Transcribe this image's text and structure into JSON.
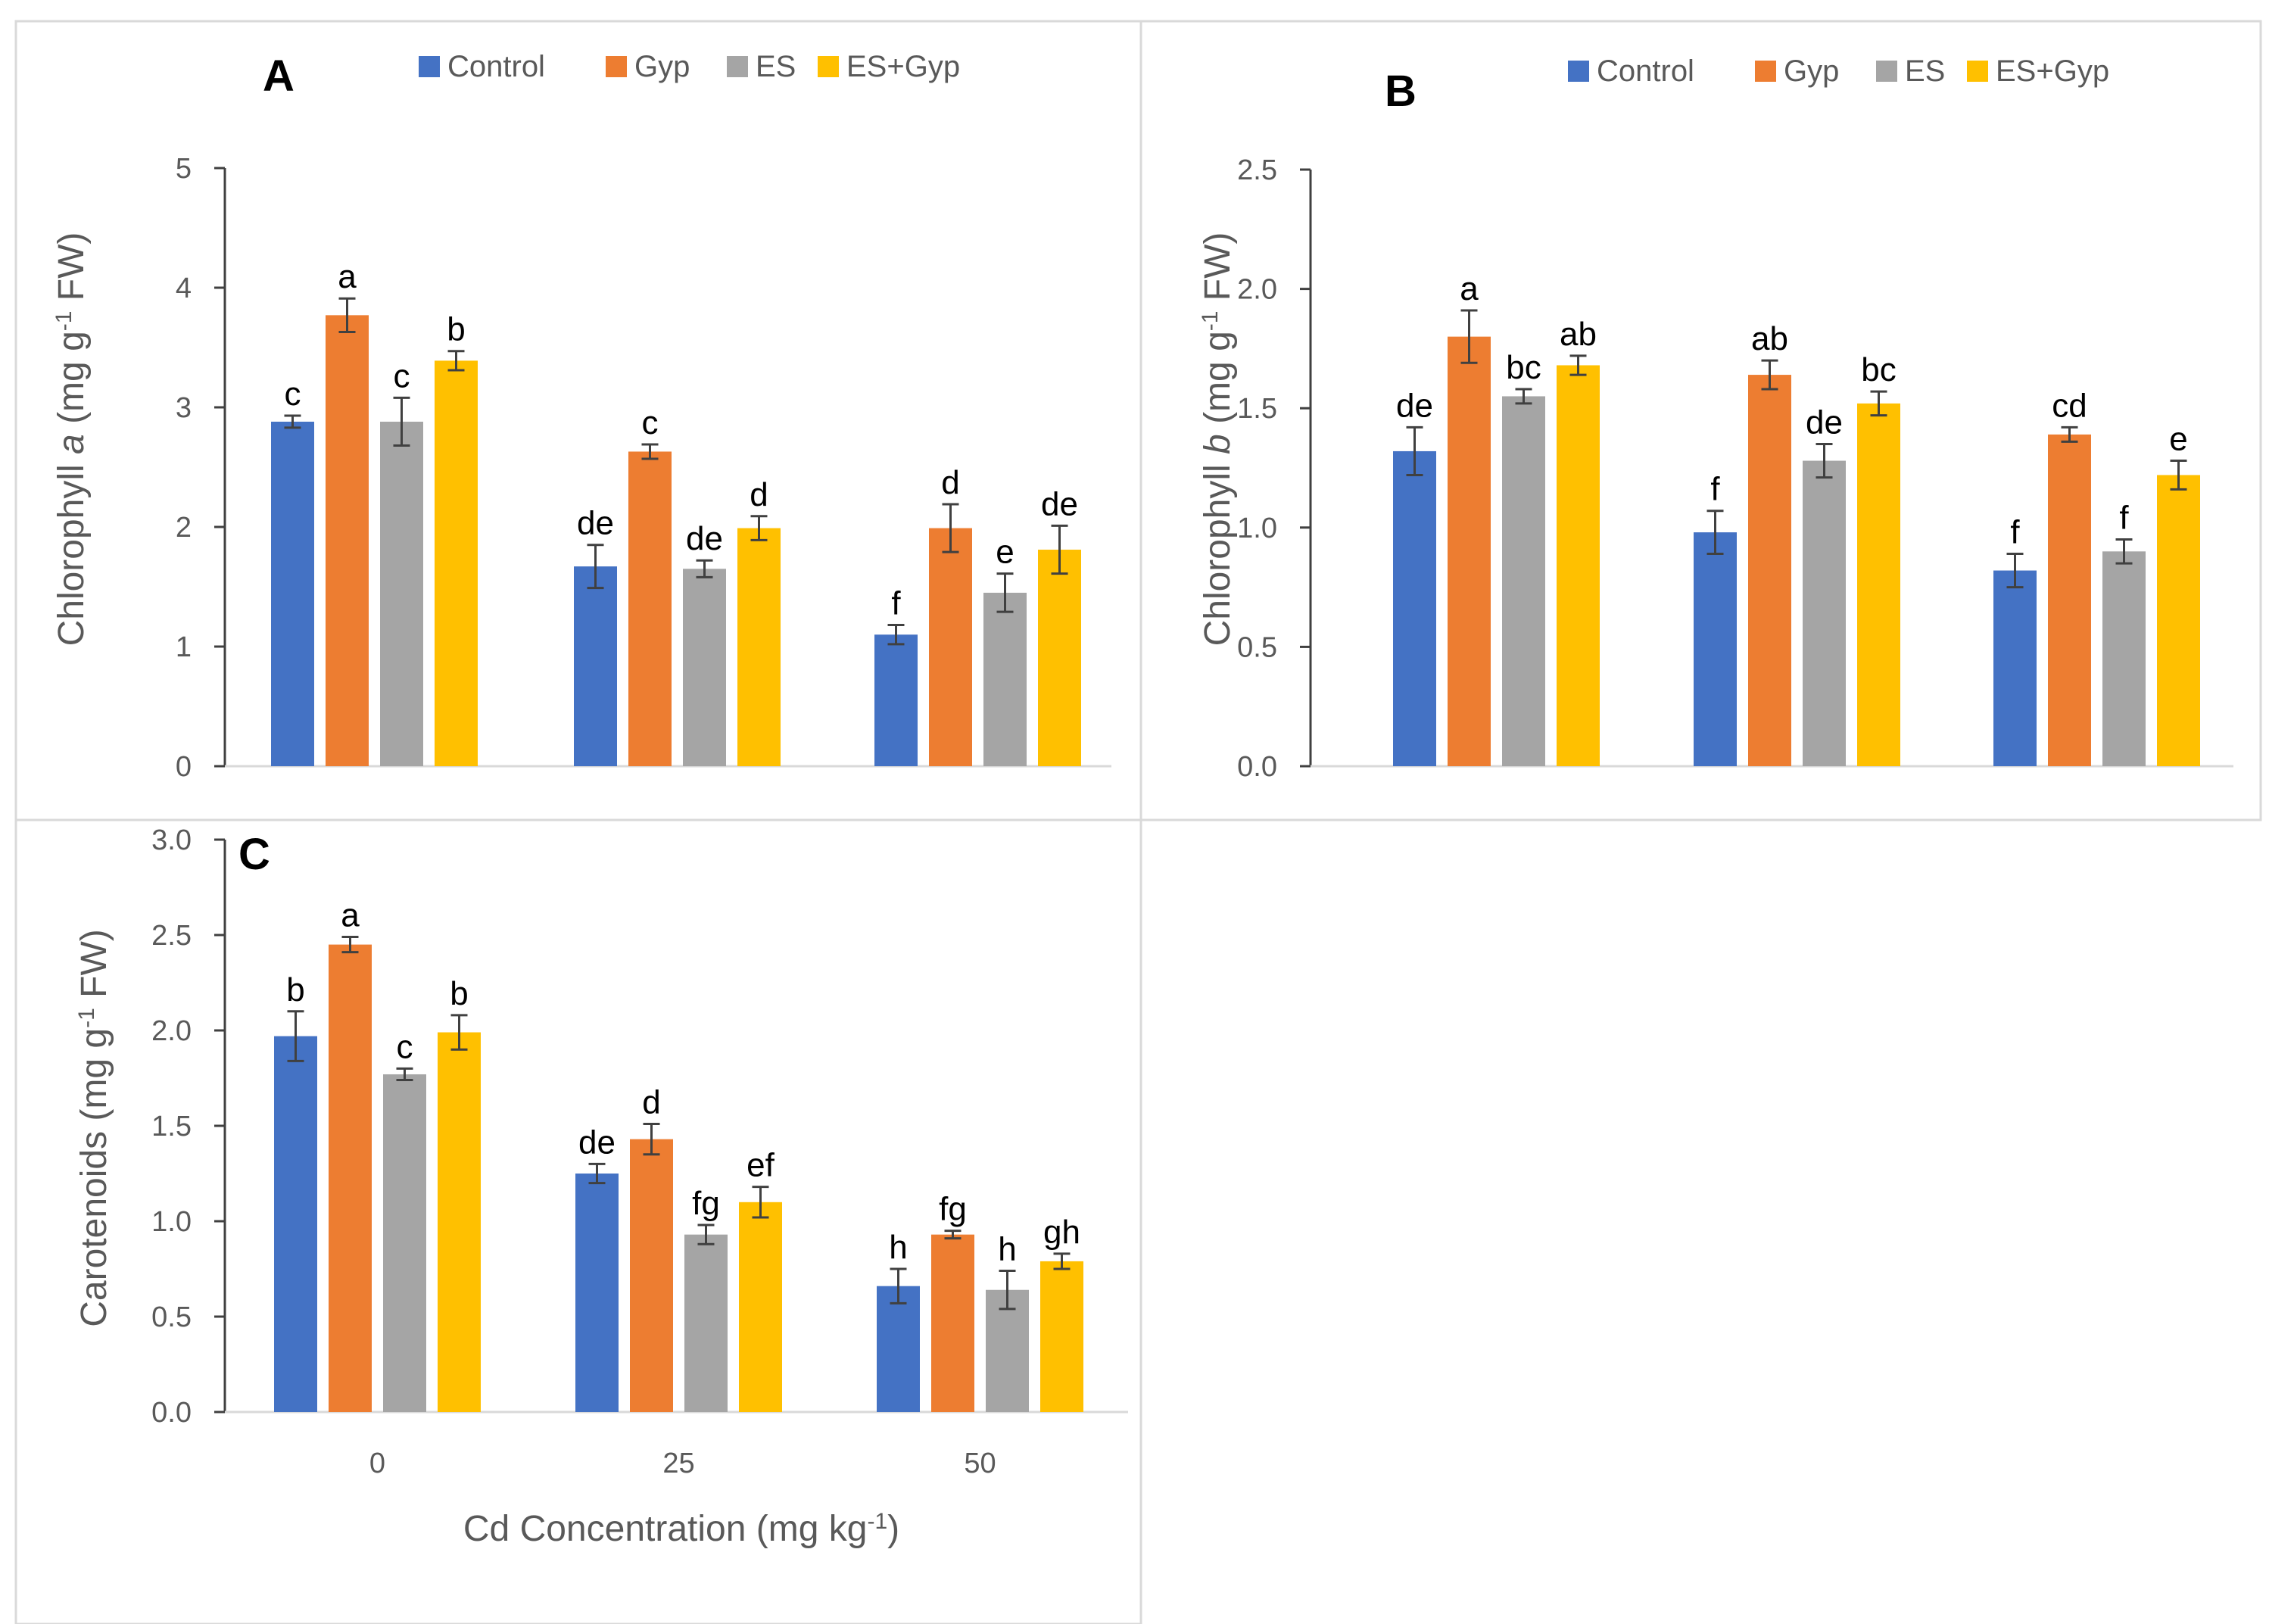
{
  "colors": {
    "Control": "#4472C4",
    "Gyp": "#ED7D31",
    "ES": "#A5A5A5",
    "ES+Gyp": "#FFC000"
  },
  "chart_data": [
    {
      "panel": "A",
      "type": "bar",
      "categories": [
        "0",
        "25",
        "50"
      ],
      "series": [
        {
          "name": "Control",
          "values": [
            2.88,
            1.67,
            1.1
          ],
          "errors": [
            0.05,
            0.18,
            0.08
          ],
          "letters": [
            "c",
            "de",
            "f"
          ]
        },
        {
          "name": "Gyp",
          "values": [
            3.77,
            2.63,
            1.99
          ],
          "errors": [
            0.14,
            0.06,
            0.2
          ],
          "letters": [
            "a",
            "c",
            "d"
          ]
        },
        {
          "name": "ES",
          "values": [
            2.88,
            1.65,
            1.45
          ],
          "errors": [
            0.2,
            0.07,
            0.16
          ],
          "letters": [
            "c",
            "de",
            "e"
          ]
        },
        {
          "name": "ES+Gyp",
          "values": [
            3.39,
            1.99,
            1.81
          ],
          "errors": [
            0.08,
            0.1,
            0.2
          ],
          "letters": [
            "b",
            "d",
            "de"
          ]
        }
      ],
      "ylabel": "Chlorophyll a (mg g-1 FW)",
      "ylim": [
        0,
        5
      ],
      "yticks": [
        "0",
        "1",
        "2",
        "3",
        "4",
        "5"
      ],
      "legend": "top"
    },
    {
      "panel": "B",
      "type": "bar",
      "categories": [
        "0",
        "25",
        "50"
      ],
      "series": [
        {
          "name": "Control",
          "values": [
            1.32,
            0.98,
            0.82
          ],
          "errors": [
            0.1,
            0.09,
            0.07
          ],
          "letters": [
            "de",
            "f",
            "f"
          ]
        },
        {
          "name": "Gyp",
          "values": [
            1.8,
            1.64,
            1.39
          ],
          "errors": [
            0.11,
            0.06,
            0.03
          ],
          "letters": [
            "a",
            "ab",
            "cd"
          ]
        },
        {
          "name": "ES",
          "values": [
            1.55,
            1.28,
            0.9
          ],
          "errors": [
            0.03,
            0.07,
            0.05
          ],
          "letters": [
            "bc",
            "de",
            "f"
          ]
        },
        {
          "name": "ES+Gyp",
          "values": [
            1.68,
            1.52,
            1.22
          ],
          "errors": [
            0.04,
            0.05,
            0.06
          ],
          "letters": [
            "ab",
            "bc",
            "e"
          ]
        }
      ],
      "ylabel": "Chlorophyll b (mg g-1 FW)",
      "ylim": [
        0,
        2.5
      ],
      "yticks": [
        "0.0",
        "0.5",
        "1.0",
        "1.5",
        "2.0",
        "2.5"
      ],
      "legend": "top"
    },
    {
      "panel": "C",
      "type": "bar",
      "categories": [
        "0",
        "25",
        "50"
      ],
      "series": [
        {
          "name": "Control",
          "values": [
            1.97,
            1.25,
            0.66
          ],
          "errors": [
            0.13,
            0.05,
            0.09
          ],
          "letters": [
            "b",
            "de",
            "h"
          ]
        },
        {
          "name": "Gyp",
          "values": [
            2.45,
            1.43,
            0.93
          ],
          "errors": [
            0.04,
            0.08,
            0.02
          ],
          "letters": [
            "a",
            "d",
            "fg"
          ]
        },
        {
          "name": "ES",
          "values": [
            1.77,
            0.93,
            0.64
          ],
          "errors": [
            0.03,
            0.05,
            0.1
          ],
          "letters": [
            "c",
            "fg",
            "h"
          ]
        },
        {
          "name": "ES+Gyp",
          "values": [
            1.99,
            1.1,
            0.79
          ],
          "errors": [
            0.09,
            0.08,
            0.04
          ],
          "letters": [
            "b",
            "ef",
            "gh"
          ]
        }
      ],
      "ylabel": "Carotenoids (mg g-1 FW)",
      "xlabel": "Cd Concentration (mg kg-1)",
      "ylim": [
        0,
        3
      ],
      "yticks": [
        "0.0",
        "0.5",
        "1.0",
        "1.5",
        "2.0",
        "2.5",
        "3.0"
      ]
    }
  ]
}
